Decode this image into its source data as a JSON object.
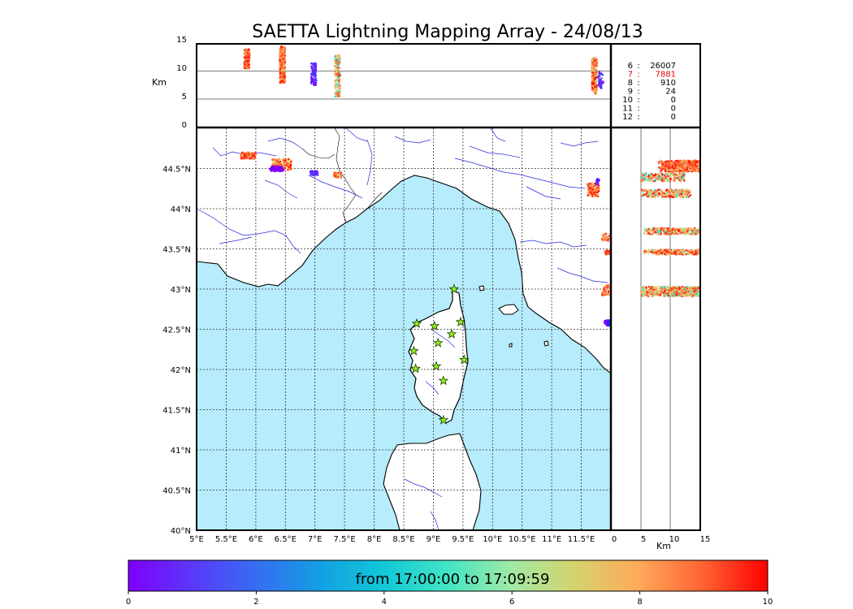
{
  "title": "SAETTA Lightning Mapping Array - 24/08/13",
  "chart_data": [
    {
      "panel": "altitude-vs-longitude",
      "type": "scatter",
      "ylabel": "Km",
      "ylim": [
        0,
        15
      ],
      "yticks": [
        "0",
        "5",
        "10",
        "15"
      ],
      "grid": "horizontal lines at 5 and 10",
      "clusters": [
        {
          "lon": 5.85,
          "alt_min": 10.5,
          "alt_max": 14.0,
          "hue_range": [
            7,
            10
          ],
          "count": 160
        },
        {
          "lon": 6.45,
          "alt_min": 8.0,
          "alt_max": 14.5,
          "hue_range": [
            6.5,
            10
          ],
          "count": 420
        },
        {
          "lon": 6.98,
          "alt_min": 7.5,
          "alt_max": 11.5,
          "hue_range": [
            0,
            1.5
          ],
          "count": 110
        },
        {
          "lon": 7.38,
          "alt_min": 5.5,
          "alt_max": 13.0,
          "hue_range": [
            3,
            9.5
          ],
          "count": 150
        },
        {
          "lon": 11.72,
          "alt_min": 6.0,
          "alt_max": 12.5,
          "hue_range": [
            6,
            10
          ],
          "count": 200
        },
        {
          "lon": 11.83,
          "alt_min": 7.0,
          "alt_max": 10.0,
          "hue_range": [
            0,
            1.5
          ],
          "count": 40
        },
        {
          "lon": 12.22,
          "alt_min": 4.0,
          "alt_max": 15.0,
          "hue_range": [
            3,
            10
          ],
          "count": 500
        }
      ]
    },
    {
      "panel": "latitude-vs-longitude-map",
      "type": "map",
      "xlim": [
        5,
        12
      ],
      "ylim": [
        40,
        45
      ],
      "xticks": [
        "5°E",
        "5.5°E",
        "6°E",
        "6.5°E",
        "7°E",
        "7.5°E",
        "8°E",
        "8.5°E",
        "9°E",
        "9.5°E",
        "10°E",
        "10.5°E",
        "11°E",
        "11.5°E"
      ],
      "yticks": [
        "40°N",
        "40.5°N",
        "41°N",
        "41.5°N",
        "42°N",
        "42.5°N",
        "43°N",
        "43.5°N",
        "44°N",
        "44.5°N"
      ],
      "grid": "dotted",
      "sea_color": "#b6ecfb",
      "stations": [
        {
          "lon": 9.35,
          "lat": 43.0
        },
        {
          "lon": 8.72,
          "lat": 42.57
        },
        {
          "lon": 9.02,
          "lat": 42.54
        },
        {
          "lon": 9.46,
          "lat": 42.59
        },
        {
          "lon": 9.31,
          "lat": 42.44
        },
        {
          "lon": 9.08,
          "lat": 42.33
        },
        {
          "lon": 8.67,
          "lat": 42.23
        },
        {
          "lon": 9.52,
          "lat": 42.12
        },
        {
          "lon": 8.7,
          "lat": 42.01
        },
        {
          "lon": 9.05,
          "lat": 42.04
        },
        {
          "lon": 9.17,
          "lat": 41.86
        },
        {
          "lon": 9.17,
          "lat": 41.37
        }
      ],
      "clusters": [
        {
          "lon_min": 5.75,
          "lon_max": 6.0,
          "lat_min": 44.62,
          "lat_max": 44.7,
          "hue_range": [
            7,
            10
          ],
          "count": 120
        },
        {
          "lon_min": 6.28,
          "lon_max": 6.6,
          "lat_min": 44.48,
          "lat_max": 44.62,
          "hue_range": [
            6.5,
            10
          ],
          "count": 160
        },
        {
          "lon_min": 6.25,
          "lon_max": 6.45,
          "lat_min": 44.47,
          "lat_max": 44.52,
          "hue_range": [
            0,
            0
          ],
          "count": 60
        },
        {
          "lon_min": 6.92,
          "lon_max": 7.05,
          "lat_min": 44.41,
          "lat_max": 44.47,
          "hue_range": [
            0,
            1.5
          ],
          "count": 50
        },
        {
          "lon_min": 7.32,
          "lon_max": 7.45,
          "lat_min": 44.39,
          "lat_max": 44.45,
          "hue_range": [
            6.5,
            10
          ],
          "count": 60
        },
        {
          "lon_min": 11.6,
          "lon_max": 11.8,
          "lat_min": 44.15,
          "lat_max": 44.32,
          "hue_range": [
            6.5,
            10
          ],
          "count": 120
        },
        {
          "lon_min": 11.75,
          "lon_max": 11.8,
          "lat_min": 44.3,
          "lat_max": 44.38,
          "hue_range": [
            0,
            1.5
          ],
          "count": 25
        },
        {
          "lon_min": 11.85,
          "lon_max": 12.0,
          "lat_min": 43.6,
          "lat_max": 43.7,
          "hue_range": [
            7,
            10
          ],
          "count": 40
        },
        {
          "lon_min": 11.9,
          "lon_max": 12.0,
          "lat_min": 43.43,
          "lat_max": 43.48,
          "hue_range": [
            7,
            10
          ],
          "count": 30
        },
        {
          "lon_min": 11.85,
          "lon_max": 12.0,
          "lat_min": 42.92,
          "lat_max": 43.05,
          "hue_range": [
            7,
            10
          ],
          "count": 60
        },
        {
          "lon_min": 11.9,
          "lon_max": 12.0,
          "lat_min": 42.55,
          "lat_max": 42.61,
          "hue_range": [
            0,
            0
          ],
          "count": 40
        }
      ]
    },
    {
      "panel": "latitude-vs-altitude",
      "type": "scatter",
      "xlabel": "Km",
      "xlim": [
        0,
        15
      ],
      "xticks": [
        "0",
        "5",
        "10",
        "15"
      ],
      "grid": "vertical lines at 5 and 10",
      "clusters": [
        {
          "lat": 44.53,
          "alt_min": 8.0,
          "alt_max": 15.0,
          "spread": 0.07,
          "hue_range": [
            6.5,
            10
          ],
          "count": 400
        },
        {
          "lat": 44.39,
          "alt_min": 5.0,
          "alt_max": 12.5,
          "spread": 0.05,
          "hue_range": [
            3,
            10
          ],
          "count": 200
        },
        {
          "lat": 44.19,
          "alt_min": 5.0,
          "alt_max": 13.5,
          "spread": 0.05,
          "hue_range": [
            4,
            10
          ],
          "count": 220
        },
        {
          "lat": 43.72,
          "alt_min": 5.5,
          "alt_max": 15.0,
          "spread": 0.04,
          "hue_range": [
            4,
            10
          ],
          "count": 260
        },
        {
          "lat": 43.46,
          "alt_min": 5.5,
          "alt_max": 15.0,
          "spread": 0.03,
          "hue_range": [
            5,
            10
          ],
          "count": 220
        },
        {
          "lat": 42.97,
          "alt_min": 5.0,
          "alt_max": 15.0,
          "spread": 0.06,
          "hue_range": [
            4,
            10
          ],
          "count": 520
        }
      ]
    },
    {
      "panel": "colorbar",
      "type": "colorbar",
      "label": "from 17:00:00 to 17:09:59",
      "range": [
        0,
        10
      ],
      "ticks": [
        "0",
        "2",
        "4",
        "6",
        "8",
        "10"
      ]
    }
  ],
  "station_stats": [
    {
      "stations": "6",
      "sep": ":",
      "count": "26007",
      "color": "#000000"
    },
    {
      "stations": "7",
      "sep": ":",
      "count": "7881",
      "color": "#e00000"
    },
    {
      "stations": "8",
      "sep": ":",
      "count": "910",
      "color": "#000000"
    },
    {
      "stations": "9",
      "sep": ":",
      "count": "24",
      "color": "#000000"
    },
    {
      "stations": "10",
      "sep": ":",
      "count": "0",
      "color": "#000000"
    },
    {
      "stations": "11",
      "sep": ":",
      "count": "0",
      "color": "#000000"
    },
    {
      "stations": "12",
      "sep": ":",
      "count": "0",
      "color": "#000000"
    }
  ],
  "colors": {
    "sea": "#b6ecfb",
    "river": "#2828e0",
    "station_fill": "#8ef01a",
    "grid": "#333333"
  }
}
